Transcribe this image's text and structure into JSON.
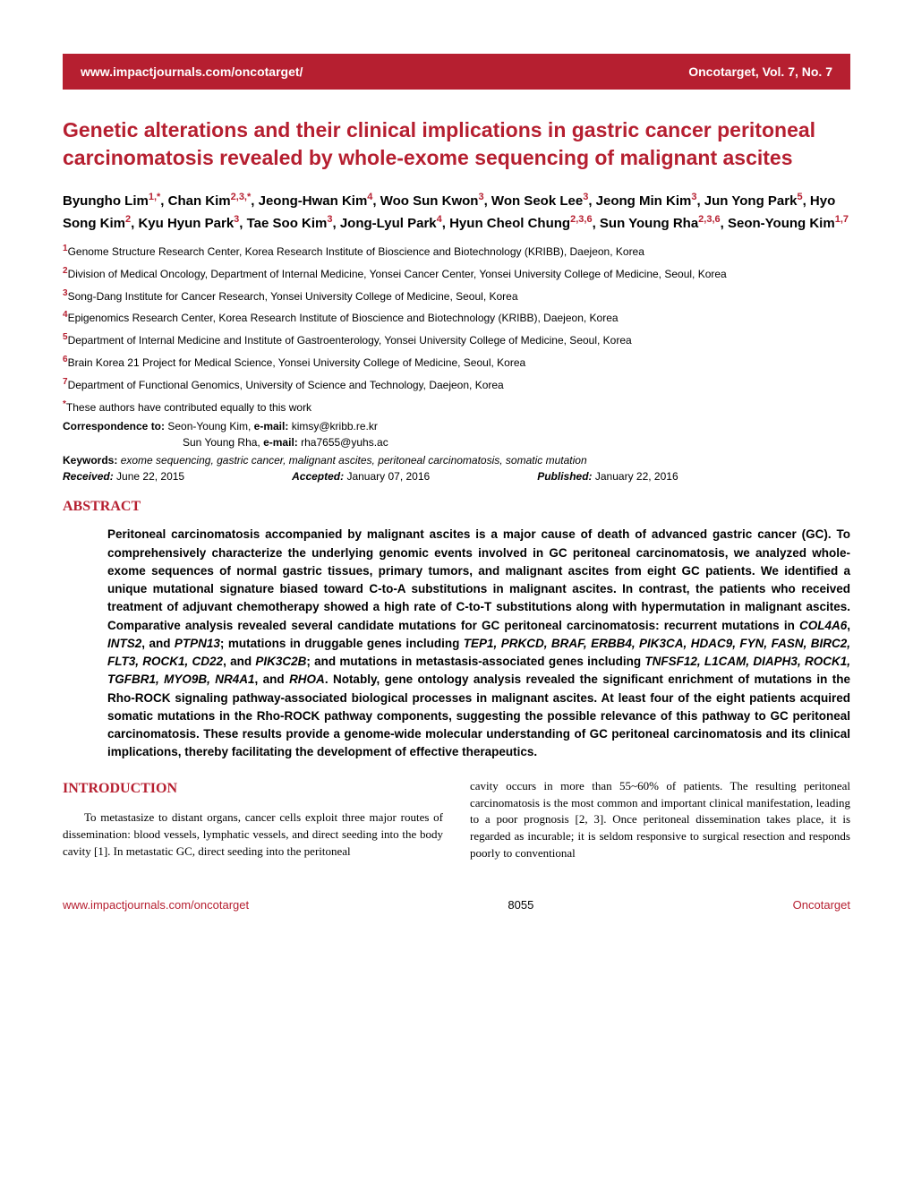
{
  "header": {
    "url": "www.impactjournals.com/oncotarget/",
    "journal": "Oncotarget, Vol. 7, No. 7"
  },
  "title": "Genetic alterations and their clinical implications in gastric cancer peritoneal carcinomatosis revealed by whole-exome sequencing of malignant ascites",
  "authors_html": "Byungho Lim<sup>1,*</sup>, Chan Kim<sup>2,3,*</sup>, Jeong-Hwan Kim<sup>4</sup>, Woo Sun Kwon<sup>3</sup>, Won Seok Lee<sup>3</sup>, Jeong Min Kim<sup>3</sup>, Jun Yong Park<sup>5</sup>, Hyo Song Kim<sup>2</sup>, Kyu Hyun Park<sup>3</sup>, Tae Soo Kim<sup>3</sup>, Jong-Lyul Park<sup>4</sup>, Hyun Cheol Chung<sup>2,3,6</sup>, Sun Young Rha<sup>2,3,6</sup>, Seon-Young Kim<sup>1,7</sup>",
  "affiliations": [
    {
      "n": "1",
      "text": "Genome Structure Research Center, Korea Research Institute of Bioscience and Biotechnology (KRIBB), Daejeon, Korea"
    },
    {
      "n": "2",
      "text": "Division of Medical Oncology, Department of Internal Medicine, Yonsei Cancer Center, Yonsei University College of Medicine, Seoul, Korea"
    },
    {
      "n": "3",
      "text": "Song-Dang Institute for Cancer Research, Yonsei University College of Medicine, Seoul, Korea"
    },
    {
      "n": "4",
      "text": "Epigenomics Research Center, Korea Research Institute of Bioscience and Biotechnology (KRIBB), Daejeon, Korea"
    },
    {
      "n": "5",
      "text": "Department of Internal Medicine and Institute of Gastroenterology, Yonsei University College of Medicine, Seoul, Korea"
    },
    {
      "n": "6",
      "text": "Brain Korea 21 Project for Medical Science, Yonsei University College of Medicine, Seoul, Korea"
    },
    {
      "n": "7",
      "text": "Department of Functional Genomics, University of Science and Technology, Daejeon, Korea"
    },
    {
      "n": "*",
      "text": "These authors have contributed equally to this work"
    }
  ],
  "correspondence": {
    "label": "Correspondence to:",
    "line1": "Seon-Young Kim, ",
    "email1_label": "e-mail:",
    "email1": " kimsy@kribb.re.kr",
    "line2": "Sun Young Rha, ",
    "email2_label": "e-mail:",
    "email2": " rha7655@yuhs.ac"
  },
  "keywords": {
    "label": "Keywords:",
    "text": " exome sequencing, gastric cancer, malignant ascites, peritoneal carcinomatosis, somatic mutation"
  },
  "dates": {
    "received_label": "Received:",
    "received": " June 22, 2015",
    "accepted_label": "Accepted:",
    "accepted": " January 07, 2016",
    "published_label": "Published:",
    "published": " January 22, 2016"
  },
  "abstract_head": "ABSTRACT",
  "abstract_html": "Peritoneal carcinomatosis accompanied by malignant ascites is a major cause of death of advanced gastric cancer (GC). To comprehensively characterize the underlying genomic events involved in GC peritoneal carcinomatosis, we analyzed whole-exome sequences of normal gastric tissues, primary tumors, and malignant ascites from eight GC patients. We identified a unique mutational signature biased toward C-to-A substitutions in malignant ascites. In contrast, the patients who received treatment of adjuvant chemotherapy showed a high rate of C-to-T substitutions along with hypermutation in malignant ascites. Comparative analysis revealed several candidate mutations for GC peritoneal carcinomatosis: recurrent mutations in <em>COL4A6</em>, <em>INTS2</em>, and <em>PTPN13</em>; mutations in druggable genes including <em>TEP1, PRKCD, BRAF, ERBB4, PIK3CA, HDAC9, FYN, FASN, BIRC2, FLT3, ROCK1, CD22</em>, and <em>PIK3C2B</em>; and mutations in metastasis-associated genes including <em>TNFSF12, L1CAM, DIAPH3, ROCK1, TGFBR1, MYO9B, NR4A1</em>, and <em>RHOA</em>. Notably, gene ontology analysis revealed the significant enrichment of mutations in the Rho-ROCK signaling pathway-associated biological processes in malignant ascites. At least four of the eight patients acquired somatic mutations in the Rho-ROCK pathway components, suggesting the possible relevance of this pathway to GC peritoneal carcinomatosis. These results provide a genome-wide molecular understanding of GC peritoneal carcinomatosis and its clinical implications, thereby facilitating the development of effective therapeutics.",
  "intro_head": "INTRODUCTION",
  "intro_col1": "To metastasize to distant organs, cancer cells exploit three major routes of dissemination: blood vessels, lymphatic vessels, and direct seeding into the body cavity [1]. In metastatic GC, direct seeding into the peritoneal",
  "intro_col2": "cavity occurs in more than 55~60% of patients. The resulting peritoneal carcinomatosis is the most common and important clinical manifestation, leading to a poor prognosis [2, 3]. Once peritoneal dissemination takes place, it is regarded as incurable; it is seldom responsive to surgical resection and responds poorly to conventional",
  "footer": {
    "url": "www.impactjournals.com/oncotarget",
    "page": "8055",
    "journal": "Oncotarget"
  },
  "colors": {
    "brand": "#b61f30"
  }
}
